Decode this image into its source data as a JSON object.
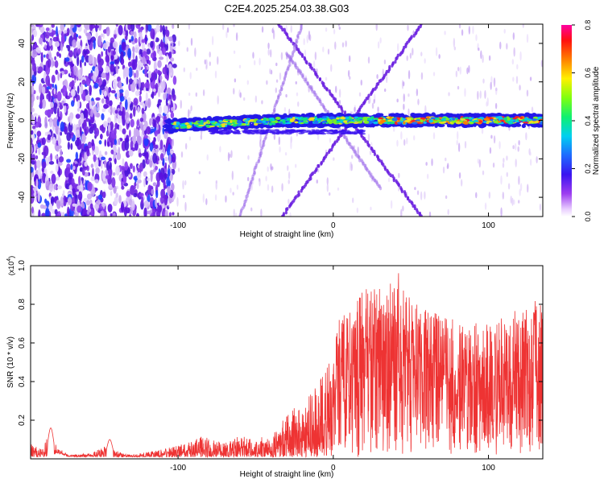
{
  "title": "C2E4.2025.254.03.38.G03",
  "colors": {
    "line": "#ee3333",
    "background": "#ffffff",
    "axis": "#000000",
    "speckle": "#6a1ee0",
    "hot": "#ff2020"
  },
  "chart_data": [
    {
      "type": "heatmap",
      "title": "C2E4.2025.254.03.38.G03",
      "xlabel": "Height of straight line (km)",
      "ylabel": "Frequency (Hz)",
      "xlim": [
        -195,
        135
      ],
      "ylim": [
        -50,
        50
      ],
      "xticks": [
        -100,
        0,
        100
      ],
      "xtick_labels": [
        "-100",
        "0",
        "100"
      ],
      "yticks": [
        -40,
        -20,
        0,
        20,
        40
      ],
      "ytick_labels": [
        "-40",
        "-20",
        "0",
        "20",
        "40"
      ],
      "colorbar": {
        "label": "Normalized spectral amplitude",
        "range": [
          0.0,
          0.8
        ],
        "ticks": [
          0.0,
          0.2,
          0.4,
          0.6,
          0.8
        ],
        "tick_labels": [
          "0.0",
          "0.2",
          "0.4",
          "0.6",
          "0.8"
        ],
        "colormap": "rainbow (white-violet-blue-cyan-green-yellow-red)"
      },
      "features": {
        "main_band": {
          "x_start": -108,
          "x_end": 135,
          "freq_center_hz": 0
        },
        "crossing_lines": [
          {
            "x": [
              -33,
              57
            ],
            "y": [
              -50,
              50
            ]
          },
          {
            "x": [
              -35,
              57
            ],
            "y": [
              50,
              -50
            ]
          },
          {
            "x": [
              -60,
              -20
            ],
            "y": [
              -50,
              50
            ]
          },
          {
            "x": [
              -30,
              30
            ],
            "y": [
              35,
              -35
            ]
          }
        ],
        "noisy_region": {
          "x_start": -195,
          "x_end": -108
        }
      }
    },
    {
      "type": "line",
      "xlabel": "Height of straight line (km)",
      "ylabel": "SNR (10 * v/v)",
      "y_multiplier": "(x10^4)",
      "y_multiplier_base": "(x10",
      "y_multiplier_exp": "4",
      "y_multiplier_close": ")",
      "xlim": [
        -195,
        135
      ],
      "ylim": [
        0,
        1.0
      ],
      "xticks": [
        -100,
        0,
        100
      ],
      "xtick_labels": [
        "-100",
        "0",
        "100"
      ],
      "yticks": [
        0.2,
        0.4,
        0.6,
        0.8,
        1.0
      ],
      "ytick_labels": [
        "0.2",
        "0.4",
        "0.6",
        "0.8",
        "1.0"
      ],
      "envelope": {
        "x": [
          -195,
          -188,
          -182,
          -178,
          -170,
          -155,
          -145,
          -140,
          -130,
          -110,
          -95,
          -85,
          -78,
          -70,
          -60,
          -50,
          -35,
          -30,
          -20,
          -10,
          0,
          5,
          10,
          20,
          40,
          60,
          80,
          100,
          120,
          135
        ],
        "low": [
          0.01,
          0.01,
          0.01,
          0.03,
          0.01,
          0.01,
          0.01,
          0.01,
          0.01,
          0.01,
          0.01,
          0.01,
          0.01,
          0.01,
          0.01,
          0.01,
          0.01,
          0.01,
          0.01,
          0.01,
          0.01,
          0.01,
          0.01,
          0.01,
          0.02,
          0.02,
          0.02,
          0.02,
          0.02,
          0.02
        ],
        "high": [
          0.08,
          0.05,
          0.15,
          0.06,
          0.02,
          0.03,
          0.08,
          0.04,
          0.02,
          0.05,
          0.08,
          0.12,
          0.1,
          0.08,
          0.12,
          0.1,
          0.15,
          0.28,
          0.25,
          0.42,
          0.55,
          0.82,
          0.75,
          0.88,
          0.92,
          0.78,
          0.72,
          0.7,
          0.78,
          0.8
        ]
      },
      "peaks": [
        {
          "x": -182,
          "y": 0.16
        },
        {
          "x": -144,
          "y": 0.1
        },
        {
          "x": 42,
          "y": 1.0
        },
        {
          "x": 12,
          "y": 0.72
        },
        {
          "x": 130,
          "y": 0.85
        }
      ]
    }
  ]
}
